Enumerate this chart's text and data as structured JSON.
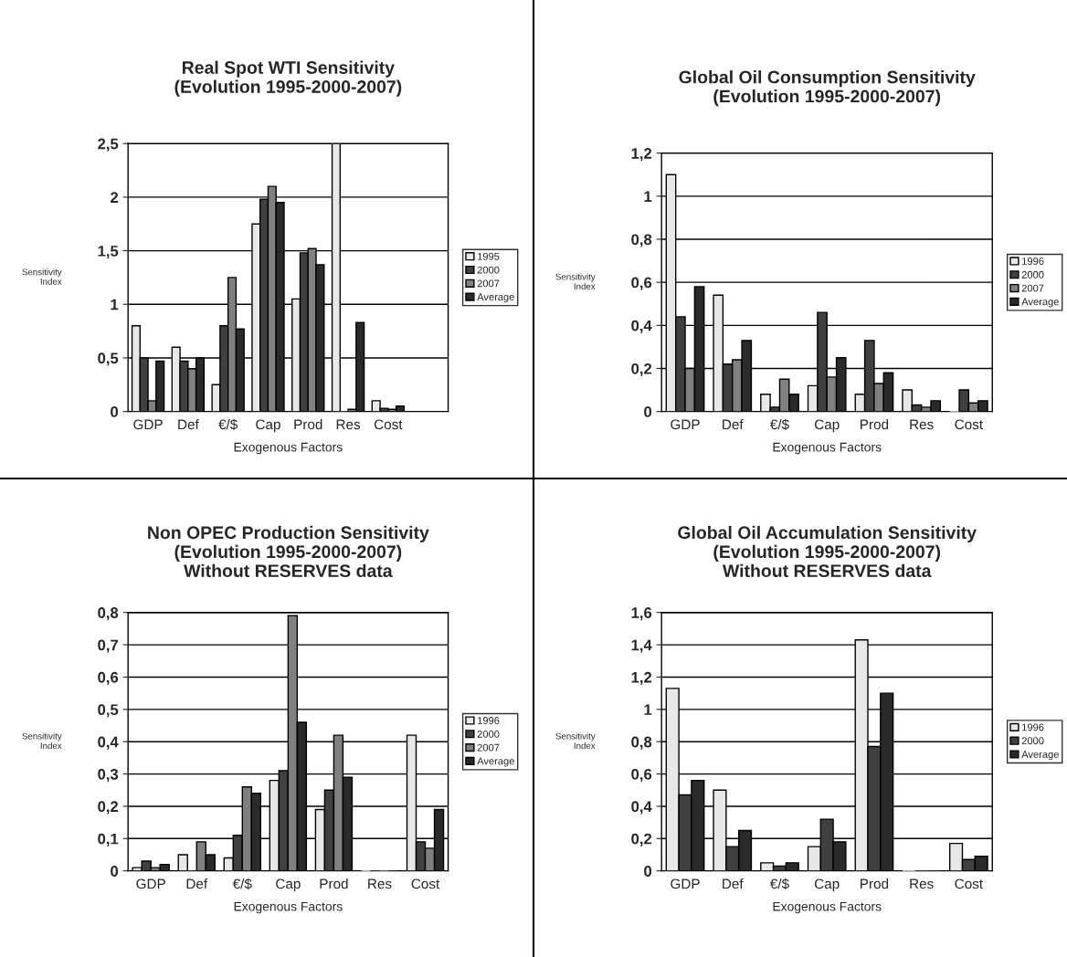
{
  "chart_data": [
    {
      "type": "bar",
      "title": "Real Spot WTI Sensitivity\n(Evolution 1995-2000-2007)",
      "xlabel": "Exogenous Factors",
      "ylabel": "Sensitivity\nIndex",
      "categories": [
        "GDP",
        "Def",
        "€/$",
        "Cap",
        "Prod",
        "Res",
        "Cost",
        null
      ],
      "series": [
        {
          "name": "1995",
          "color": "#e8e8e8",
          "values": [
            0.8,
            0.6,
            0.25,
            1.75,
            1.05,
            2.5,
            0.1,
            null
          ]
        },
        {
          "name": "2000",
          "color": "#404040",
          "values": [
            0.5,
            0.47,
            0.8,
            1.98,
            1.48,
            0.0,
            0.03,
            null
          ]
        },
        {
          "name": "2007",
          "color": "#808080",
          "values": [
            0.1,
            0.4,
            1.25,
            2.1,
            1.52,
            0.02,
            0.02,
            null
          ]
        },
        {
          "name": "Average",
          "color": "#2a2a2a",
          "values": [
            0.47,
            0.5,
            0.77,
            1.95,
            1.37,
            0.83,
            0.05,
            null
          ]
        }
      ],
      "ylim": [
        0,
        2.5
      ],
      "yticks": [
        0,
        {
          "value": 0.5,
          "label": "0,5"
        },
        1,
        {
          "value": 1.5,
          "label": "1,5"
        },
        2,
        {
          "value": 2.5,
          "label": "2,5"
        }
      ],
      "grid": "y",
      "legend": "right"
    },
    {
      "type": "bar",
      "title": "Global Oil Consumption Sensitivity\n(Evolution 1995-2000-2007)",
      "xlabel": "Exogenous Factors",
      "ylabel": "Sensitivity\nIndex",
      "categories": [
        "GDP",
        "Def",
        "€/$",
        "Cap",
        "Prod",
        "Res",
        "Cost"
      ],
      "series": [
        {
          "name": "1996",
          "color": "#e8e8e8",
          "values": [
            1.1,
            0.54,
            0.08,
            0.12,
            0.08,
            0.1,
            0.0
          ]
        },
        {
          "name": "2000",
          "color": "#404040",
          "values": [
            0.44,
            0.22,
            0.02,
            0.46,
            0.33,
            0.03,
            0.1
          ]
        },
        {
          "name": "2007",
          "color": "#808080",
          "values": [
            0.2,
            0.24,
            0.15,
            0.16,
            0.13,
            0.02,
            0.04
          ]
        },
        {
          "name": "Average",
          "color": "#2a2a2a",
          "values": [
            0.58,
            0.33,
            0.08,
            0.25,
            0.18,
            0.05,
            0.05
          ]
        }
      ],
      "ylim": [
        0,
        1.2
      ],
      "yticks": [
        0,
        {
          "value": 0.2,
          "label": "0,2"
        },
        {
          "value": 0.4,
          "label": "0,4"
        },
        {
          "value": 0.6,
          "label": "0,6"
        },
        {
          "value": 0.8,
          "label": "0,8"
        },
        1,
        {
          "value": 1.2,
          "label": "1,2"
        }
      ],
      "grid": "y",
      "legend": "right"
    },
    {
      "type": "bar",
      "title": "Non OPEC Production Sensitivity\n(Evolution 1995-2000-2007)\nWithout RESERVES data",
      "xlabel": "Exogenous Factors",
      "ylabel": "Sensitivity\nIndex",
      "categories": [
        "GDP",
        "Def",
        "€/$",
        "Cap",
        "Prod",
        "Res",
        "Cost"
      ],
      "series": [
        {
          "name": "1996",
          "color": "#e8e8e8",
          "values": [
            0.01,
            0.05,
            0.04,
            0.28,
            0.19,
            0.0,
            0.42
          ]
        },
        {
          "name": "2000",
          "color": "#404040",
          "values": [
            0.03,
            0.0,
            0.11,
            0.31,
            0.25,
            0.0,
            0.09
          ]
        },
        {
          "name": "2007",
          "color": "#808080",
          "values": [
            0.01,
            0.09,
            0.26,
            0.79,
            0.42,
            0.0,
            0.07
          ]
        },
        {
          "name": "Average",
          "color": "#2a2a2a",
          "values": [
            0.02,
            0.05,
            0.24,
            0.46,
            0.29,
            0.0,
            0.19
          ]
        }
      ],
      "ylim": [
        0,
        0.8
      ],
      "yticks": [
        0,
        {
          "value": 0.1,
          "label": "0,1"
        },
        {
          "value": 0.2,
          "label": "0,2"
        },
        {
          "value": 0.3,
          "label": "0,3"
        },
        {
          "value": 0.4,
          "label": "0,4"
        },
        {
          "value": 0.5,
          "label": "0,5"
        },
        {
          "value": 0.6,
          "label": "0,6"
        },
        {
          "value": 0.7,
          "label": "0,7"
        },
        {
          "value": 0.8,
          "label": "0,8"
        }
      ],
      "grid": "y",
      "legend": "right"
    },
    {
      "type": "bar",
      "title": "Global Oil Accumulation Sensitivity\n(Evolution 1995-2000-2007)\nWithout RESERVES data",
      "xlabel": "Exogenous Factors",
      "ylabel": "Sensitivity\nIndex",
      "categories": [
        "GDP",
        "Def",
        "€/$",
        "Cap",
        "Prod",
        "Res",
        "Cost"
      ],
      "series": [
        {
          "name": "1996",
          "color": "#e8e8e8",
          "values": [
            1.13,
            0.5,
            0.05,
            0.15,
            1.43,
            0.0,
            0.17
          ]
        },
        {
          "name": "2000",
          "color": "#404040",
          "values": [
            0.47,
            0.15,
            0.03,
            0.32,
            0.77,
            0.0,
            0.07
          ]
        },
        {
          "name": "Average",
          "color": "#2a2a2a",
          "values": [
            0.56,
            0.25,
            0.05,
            0.18,
            1.1,
            0.0,
            0.09
          ]
        }
      ],
      "ylim": [
        0,
        1.6
      ],
      "yticks": [
        0,
        {
          "value": 0.2,
          "label": "0,2"
        },
        {
          "value": 0.4,
          "label": "0,4"
        },
        {
          "value": 0.6,
          "label": "0,6"
        },
        {
          "value": 0.8,
          "label": "0,8"
        },
        1,
        {
          "value": 1.2,
          "label": "1,2"
        },
        {
          "value": 1.4,
          "label": "1,4"
        },
        {
          "value": 1.6,
          "label": "1,6"
        }
      ],
      "grid": "y",
      "legend": "right"
    }
  ]
}
